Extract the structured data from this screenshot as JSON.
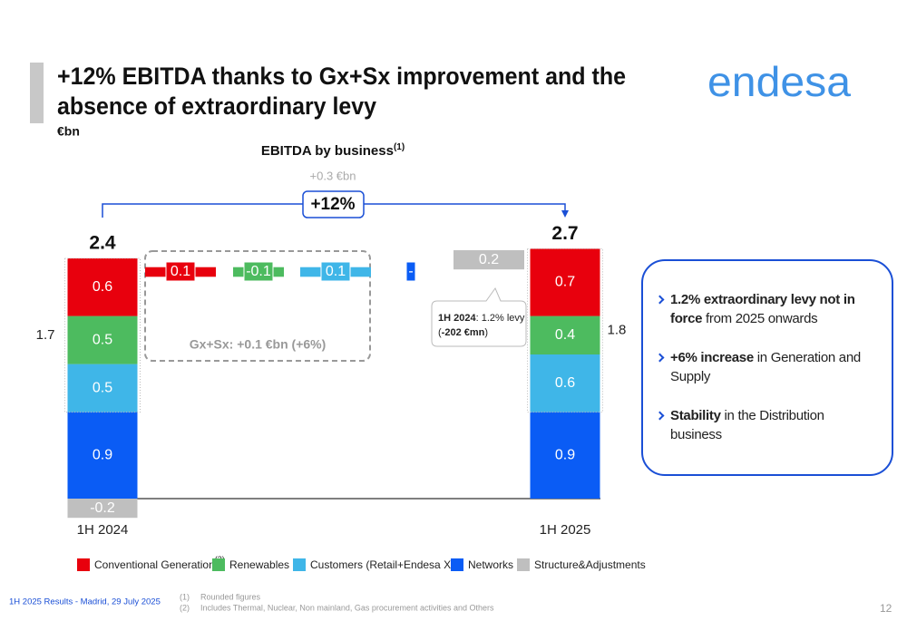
{
  "header": {
    "title_line1": "+12% EBITDA thanks to Gx+Sx improvement and the",
    "title_line2": "absence of extraordinary levy",
    "unit": "€bn"
  },
  "logo": "endesa",
  "chart_data": {
    "type": "waterfall",
    "title": "EBITDA by business",
    "title_note": "(1)",
    "categories": [
      "1H 2024",
      "1H 2025"
    ],
    "series": [
      {
        "name": "Conventional Generation",
        "name_note": "(2)",
        "color": "#e8000d",
        "values": [
          0.6,
          0.7
        ],
        "change": 0.1
      },
      {
        "name": "Renewables",
        "color": "#4dbb5f",
        "values": [
          0.5,
          0.4
        ],
        "change": -0.1
      },
      {
        "name": "Customers (Retail+Endesa X)",
        "color": "#3fb6e8",
        "values": [
          0.5,
          0.6
        ],
        "change": 0.1
      },
      {
        "name": "Networks",
        "color": "#0a5cf5",
        "values": [
          0.9,
          0.9
        ],
        "change": 0,
        "change_label": "-"
      },
      {
        "name": "Structure&Adjustments",
        "color": "#bfbfbf",
        "values": [
          -0.2,
          null
        ],
        "change": 0.2
      }
    ],
    "totals": [
      2.4,
      2.7
    ],
    "gx_sx_totals": [
      1.7,
      1.8
    ],
    "total_change": "+0.3 €bn",
    "total_change_pct": "+12%",
    "gx_sx_change": "Gx+Sx: +0.1 €bn (+6%)",
    "annotation": {
      "period": "1H 2024",
      "text": ": 1.2% levy",
      "impact_open": "(",
      "impact": "-202 €mn",
      "impact_close": ")"
    }
  },
  "bullets": [
    {
      "bold": "1.2% extraordinary levy not in force",
      "text": " from 2025 onwards"
    },
    {
      "bold": "+6% increase",
      "text": " in Generation and Supply"
    },
    {
      "bold": "Stability",
      "text": " in the Distribution business"
    }
  ],
  "footer": {
    "left": "1H 2025 Results - Madrid, 29 July 2025",
    "notes": [
      {
        "mark": "(1)",
        "text": "Rounded figures"
      },
      {
        "mark": "(2)",
        "text": "Includes Thermal, Nuclear, Non mainland, Gas procurement activities and Others"
      }
    ],
    "page": 12
  }
}
